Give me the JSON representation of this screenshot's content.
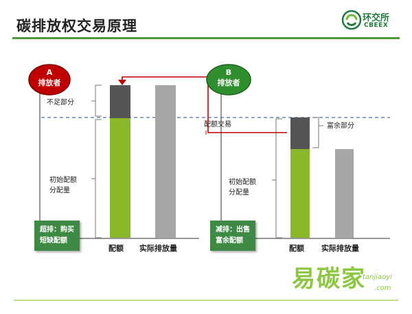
{
  "title": "碳排放权交易原理",
  "logo": {
    "name_cn": "环交所",
    "name_en": "CBEEX"
  },
  "party_a": {
    "letter": "A",
    "label": "排放者"
  },
  "party_b": {
    "letter": "B",
    "label": "排放者"
  },
  "labels": {
    "shortage": "不足部分",
    "surplus": "富余部分",
    "quota_trade": "配额交易",
    "initial_alloc_a": "初始配额\n分配量",
    "initial_alloc_b": "初始配额\n分配量",
    "quota_a": "配额",
    "actual_a": "实际排放量",
    "quota_b": "配额",
    "actual_b": "实际排放量"
  },
  "callouts": {
    "a": "超排：购买\n短缺配额",
    "b": "减排：出售\n富余配额"
  },
  "watermark": {
    "cn": "易碳家",
    "en": "tanjiaoyi",
    "com": ".com"
  },
  "colors": {
    "green": "#8bb82a",
    "dark_gray": "#555555",
    "light_gray": "#a6a6a6",
    "red": "#c00000",
    "accent_green": "#3e8a45",
    "dashed_blue": "#4a6fa5"
  }
}
